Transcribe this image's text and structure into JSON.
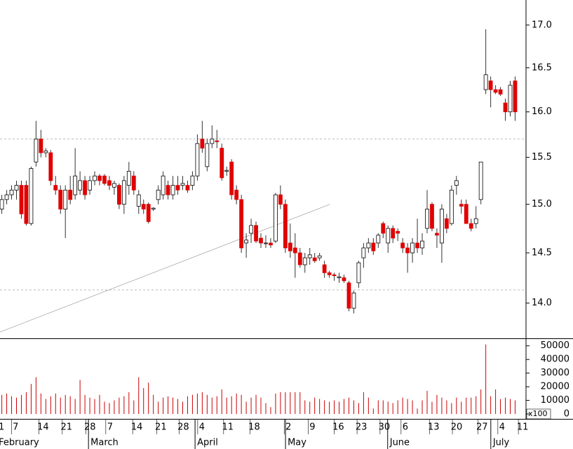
{
  "chart_data": {
    "type": "candlestick",
    "log": true,
    "up_color": "#ffffff",
    "down_color": "#e00000",
    "volume_color": "#cc0000",
    "ylim": [
      13.66,
      17.3
    ],
    "yticks": [
      {
        "value": 17,
        "label": "17.0"
      },
      16.5,
      {
        "value": 16,
        "label": "16.0"
      },
      15.5,
      {
        "value": 15,
        "label": "15.0"
      },
      14.5,
      {
        "value": 14,
        "label": "14.0"
      }
    ],
    "xlim": [
      -0.3,
      107.3
    ],
    "xticks": [
      {
        "value": 0,
        "label": "1"
      },
      {
        "value": 2.9,
        "label": "7"
      },
      {
        "value": 8.5,
        "label": "14"
      },
      {
        "value": 13.3,
        "label": "21"
      },
      {
        "value": 18.1,
        "label": "28"
      },
      {
        "value": 22.2,
        "label": "7"
      },
      {
        "value": 27.7,
        "label": "14"
      },
      {
        "value": 32.6,
        "label": "21"
      },
      {
        "value": 37.2,
        "label": "28"
      },
      {
        "value": 41,
        "label": "4"
      },
      {
        "value": 46.3,
        "label": "11"
      },
      {
        "value": 51.7,
        "label": "18"
      },
      {
        "value": 58.7,
        "label": "2"
      },
      {
        "value": 63.6,
        "label": "9"
      },
      {
        "value": 68.9,
        "label": "16"
      },
      {
        "value": 73.6,
        "label": "23"
      },
      {
        "value": 78.3,
        "label": "30"
      },
      {
        "value": 82.6,
        "label": "6"
      },
      {
        "value": 88.4,
        "label": "13"
      },
      {
        "value": 93.1,
        "label": "20"
      },
      {
        "value": 98.3,
        "label": "27"
      },
      {
        "value": 102.4,
        "label": "4"
      },
      {
        "value": 106.6,
        "label": "11"
      }
    ],
    "months": [
      {
        "value": -1,
        "label": "February"
      },
      {
        "value": 17.8,
        "label": "March"
      },
      {
        "value": 39.6,
        "label": "April"
      },
      {
        "value": 58.1,
        "label": "May"
      },
      {
        "value": 79,
        "label": "June"
      },
      {
        "value": 100.1,
        "label": "July"
      }
    ],
    "hlines": [
      15.7,
      14.13
    ],
    "trendline": {
      "x": [
        -0.3,
        67.2
      ],
      "y": [
        13.72,
        15.0
      ]
    },
    "candles": [
      [
        14.95,
        15.1,
        14.9,
        15.05
      ],
      [
        15.05,
        15.15,
        15.0,
        15.1
      ],
      [
        15.1,
        15.2,
        15.05,
        15.15
      ],
      [
        15.15,
        15.25,
        15.05,
        15.2
      ],
      [
        15.2,
        15.25,
        14.85,
        14.9
      ],
      [
        15.2,
        15.25,
        14.78,
        14.8
      ],
      [
        14.8,
        15.4,
        14.78,
        15.38
      ],
      [
        15.45,
        15.9,
        15.4,
        15.7
      ],
      [
        15.7,
        15.8,
        15.5,
        15.55
      ],
      [
        15.55,
        15.6,
        15.5,
        15.57
      ],
      [
        15.55,
        15.58,
        15.2,
        15.25
      ],
      [
        15.2,
        15.3,
        15.1,
        15.15
      ],
      [
        15.15,
        15.2,
        14.9,
        14.95
      ],
      [
        14.95,
        15.2,
        14.65,
        15.15
      ],
      [
        15.15,
        15.3,
        15.0,
        15.05
      ],
      [
        15.1,
        15.6,
        15.05,
        15.3
      ],
      [
        15.15,
        15.35,
        15.1,
        15.25
      ],
      [
        15.25,
        15.3,
        15.05,
        15.1
      ],
      [
        15.15,
        15.3,
        15.1,
        15.25
      ],
      [
        15.25,
        15.35,
        15.2,
        15.3
      ],
      [
        15.3,
        15.32,
        15.2,
        15.25
      ],
      [
        15.3,
        15.32,
        15.2,
        15.22
      ],
      [
        15.25,
        15.3,
        15.15,
        15.2
      ],
      [
        15.18,
        15.25,
        15.1,
        15.22
      ],
      [
        15.2,
        15.22,
        14.95,
        15.0
      ],
      [
        15.0,
        15.3,
        14.9,
        15.25
      ],
      [
        15.2,
        15.45,
        15.1,
        15.35
      ],
      [
        15.3,
        15.35,
        15.1,
        15.15
      ],
      [
        14.98,
        15.15,
        14.9,
        15.1
      ],
      [
        15.0,
        15.05,
        14.9,
        14.95
      ],
      [
        15.0,
        15.02,
        14.8,
        14.82
      ],
      [
        14.95,
        14.97,
        14.93,
        14.96
      ],
      [
        15.05,
        15.2,
        15.0,
        15.15
      ],
      [
        15.1,
        15.35,
        15.05,
        15.3
      ],
      [
        15.2,
        15.25,
        15.05,
        15.1
      ],
      [
        15.1,
        15.3,
        15.05,
        15.2
      ],
      [
        15.2,
        15.3,
        15.1,
        15.15
      ],
      [
        15.2,
        15.3,
        15.15,
        15.22
      ],
      [
        15.2,
        15.25,
        15.12,
        15.15
      ],
      [
        15.2,
        15.35,
        15.15,
        15.3
      ],
      [
        15.3,
        15.75,
        15.25,
        15.65
      ],
      [
        15.7,
        15.9,
        15.55,
        15.6
      ],
      [
        15.4,
        15.7,
        15.35,
        15.65
      ],
      [
        15.65,
        15.85,
        15.6,
        15.7
      ],
      [
        15.68,
        15.8,
        15.6,
        15.67
      ],
      [
        15.6,
        15.65,
        15.25,
        15.28
      ],
      [
        15.35,
        15.4,
        15.3,
        15.36
      ],
      [
        15.45,
        15.48,
        15.05,
        15.1
      ],
      [
        15.15,
        15.2,
        15.0,
        15.05
      ],
      [
        15.05,
        15.1,
        14.5,
        14.55
      ],
      [
        14.6,
        14.7,
        14.45,
        14.63
      ],
      [
        14.7,
        14.85,
        14.6,
        14.78
      ],
      [
        14.78,
        14.82,
        14.6,
        14.62
      ],
      [
        14.65,
        14.7,
        14.55,
        14.6
      ],
      [
        14.6,
        14.68,
        14.55,
        14.6
      ],
      [
        14.6,
        14.65,
        14.55,
        14.58
      ],
      [
        14.62,
        15.12,
        14.6,
        15.1
      ],
      [
        15.1,
        15.2,
        14.95,
        15.0
      ],
      [
        15.0,
        15.05,
        14.5,
        14.55
      ],
      [
        14.6,
        14.8,
        14.45,
        14.52
      ],
      [
        14.55,
        14.7,
        14.25,
        14.5
      ],
      [
        14.5,
        14.55,
        14.35,
        14.38
      ],
      [
        14.38,
        14.5,
        14.3,
        14.45
      ],
      [
        14.45,
        14.55,
        14.38,
        14.48
      ],
      [
        14.45,
        14.5,
        14.4,
        14.42
      ],
      [
        14.45,
        14.5,
        14.42,
        14.47
      ],
      [
        14.38,
        14.42,
        14.25,
        14.3
      ],
      [
        14.3,
        14.32,
        14.25,
        14.28
      ],
      [
        14.28,
        14.3,
        14.22,
        14.27
      ],
      [
        14.25,
        14.3,
        14.2,
        14.26
      ],
      [
        14.25,
        14.28,
        14.2,
        14.22
      ],
      [
        14.2,
        14.22,
        13.92,
        13.95
      ],
      [
        13.95,
        14.12,
        13.9,
        14.1
      ],
      [
        14.2,
        14.42,
        14.15,
        14.4
      ],
      [
        14.45,
        14.6,
        14.35,
        14.55
      ],
      [
        14.55,
        14.65,
        14.5,
        14.6
      ],
      [
        14.6,
        14.65,
        14.48,
        14.52
      ],
      [
        14.6,
        14.7,
        14.55,
        14.68
      ],
      [
        14.8,
        14.82,
        14.65,
        14.7
      ],
      [
        14.6,
        14.78,
        14.5,
        14.75
      ],
      [
        14.75,
        14.78,
        14.6,
        14.65
      ],
      [
        14.72,
        14.75,
        14.62,
        14.7
      ],
      [
        14.6,
        14.65,
        14.5,
        14.55
      ],
      [
        14.55,
        14.6,
        14.3,
        14.5
      ],
      [
        14.5,
        14.65,
        14.4,
        14.6
      ],
      [
        14.6,
        14.85,
        14.5,
        14.55
      ],
      [
        14.55,
        14.7,
        14.48,
        14.62
      ],
      [
        14.75,
        15.15,
        14.7,
        14.95
      ],
      [
        15.0,
        15.02,
        14.72,
        14.75
      ],
      [
        14.7,
        14.75,
        14.55,
        14.68
      ],
      [
        14.6,
        15.0,
        14.4,
        14.95
      ],
      [
        14.85,
        14.9,
        14.7,
        14.75
      ],
      [
        14.8,
        15.2,
        14.78,
        15.15
      ],
      [
        15.2,
        15.3,
        15.1,
        15.25
      ],
      [
        15.0,
        15.05,
        14.9,
        14.98
      ],
      [
        15.0,
        15.05,
        14.8,
        14.8
      ],
      [
        14.8,
        14.85,
        14.72,
        14.75
      ],
      [
        14.8,
        14.98,
        14.75,
        14.85
      ],
      [
        15.05,
        15.45,
        15.0,
        15.45
      ],
      [
        16.25,
        16.95,
        16.2,
        16.42
      ],
      [
        16.35,
        16.4,
        16.05,
        16.25
      ],
      [
        16.25,
        16.3,
        16.2,
        16.22
      ],
      [
        16.25,
        16.28,
        16.18,
        16.2
      ],
      [
        16.1,
        16.15,
        15.9,
        16.0
      ],
      [
        16.0,
        16.35,
        15.95,
        16.3
      ],
      [
        16.35,
        16.4,
        15.9,
        16.0
      ]
    ],
    "volume": [
      14000,
      15000,
      13000,
      12000,
      14000,
      16000,
      22000,
      27000,
      15000,
      11000,
      13000,
      15000,
      12000,
      14000,
      13000,
      11000,
      25000,
      14000,
      12000,
      11000,
      14000,
      9000,
      8000,
      10000,
      12000,
      13000,
      16000,
      10000,
      27000,
      19000,
      23000,
      14000,
      9000,
      12000,
      13000,
      12000,
      11000,
      9000,
      13000,
      14000,
      15000,
      16000,
      14000,
      12000,
      13000,
      18000,
      12000,
      13000,
      15000,
      14000,
      9000,
      12000,
      14000,
      12000,
      8000,
      5000,
      15000,
      16000,
      16000,
      16000,
      16000,
      16000,
      10000,
      9000,
      12000,
      11000,
      10000,
      9000,
      10000,
      9000,
      11000,
      12000,
      10000,
      8000,
      16000,
      12000,
      4000,
      10000,
      10000,
      9000,
      8000,
      10000,
      12000,
      11000,
      10000,
      4000,
      10000,
      17000,
      9000,
      14000,
      12000,
      10000,
      8000,
      12000,
      9000,
      12000,
      12000,
      13000,
      18000,
      51000,
      13000,
      18000,
      11000,
      12000,
      11000,
      10000
    ],
    "volume_ylim": [
      0,
      55000
    ],
    "volume_yticks": [
      0,
      10000,
      20000,
      30000,
      40000,
      50000
    ],
    "volume_scale_label": "x100"
  }
}
